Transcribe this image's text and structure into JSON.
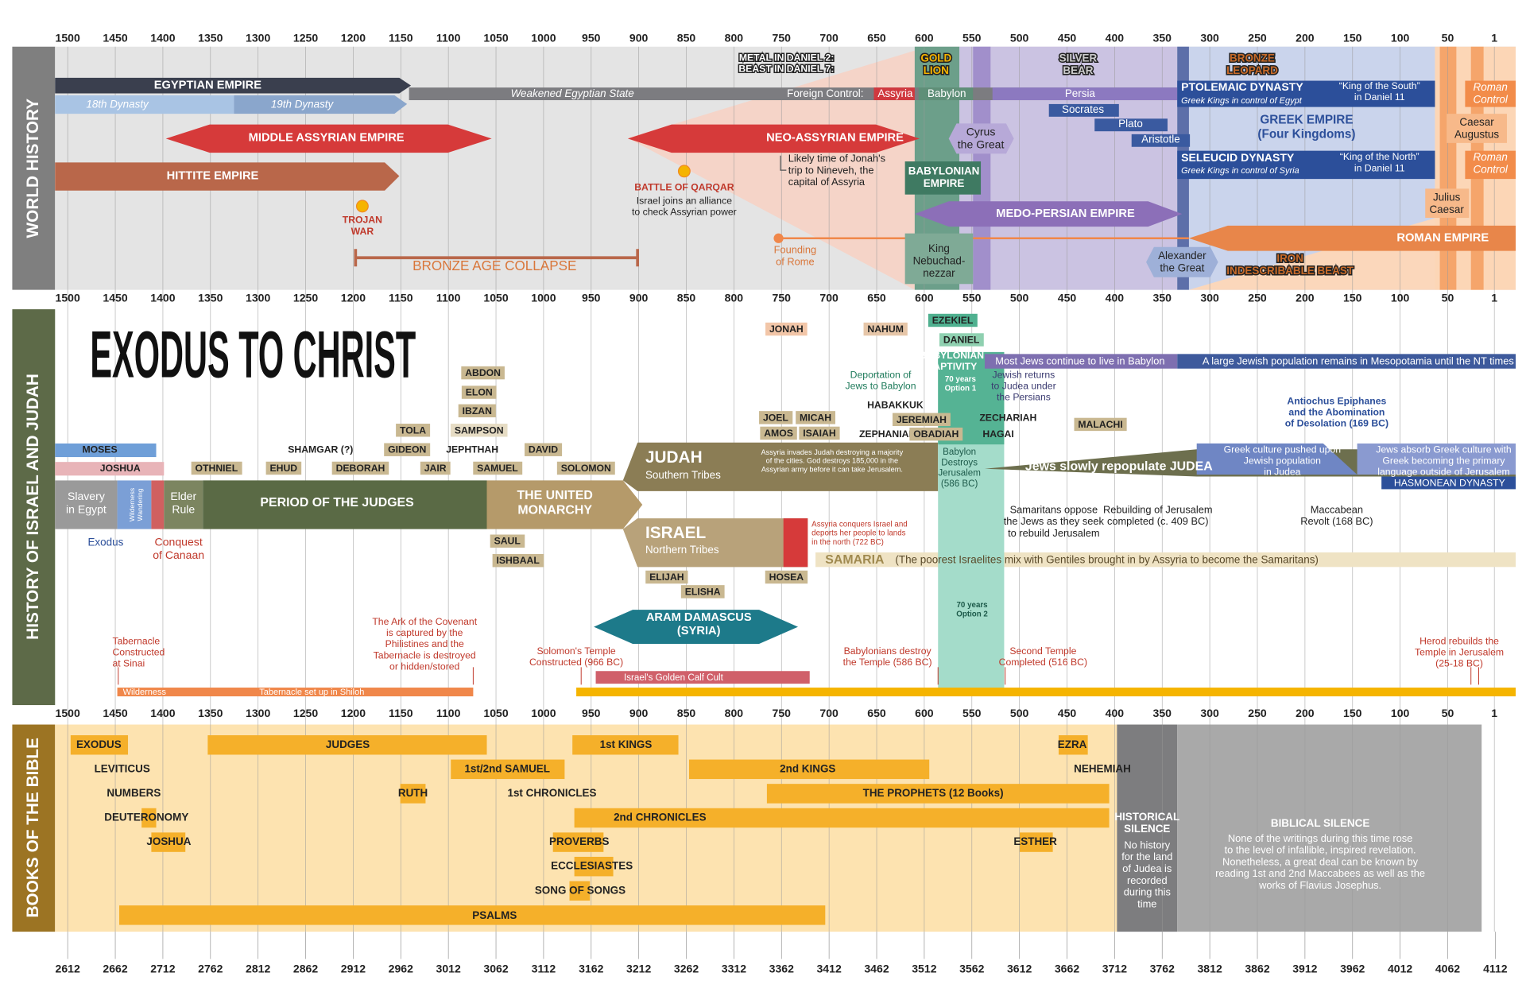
{
  "title": "EXODUS TO CHRIST",
  "sections": [
    "WORLD HISTORY",
    "HISTORY OF ISRAEL AND JUDAH",
    "BOOKS OF THE BIBLE"
  ],
  "bc_axis": [
    1500,
    1450,
    1400,
    1350,
    1300,
    1250,
    1200,
    1150,
    1100,
    1050,
    1000,
    950,
    900,
    850,
    800,
    750,
    700,
    650,
    600,
    550,
    500,
    450,
    400,
    350,
    300,
    250,
    200,
    150,
    100,
    50,
    1
  ],
  "am_axis": [
    2612,
    2662,
    2712,
    2762,
    2812,
    2862,
    2912,
    2962,
    3012,
    3062,
    3112,
    3162,
    3212,
    3262,
    3312,
    3362,
    3412,
    3462,
    3512,
    3562,
    3612,
    3662,
    3712,
    3762,
    3812,
    3862,
    3912,
    3962,
    4012,
    4062,
    4112
  ],
  "world_history": [
    "EGYPTIAN EMPIRE",
    "18th Dynasty",
    "19th Dynasty",
    "Weakened Egyptian State",
    "MIDDLE ASSYRIAN EMPIRE",
    "HITTITE EMPIRE",
    [
      "TROJAN",
      "WAR"
    ],
    "BRONZE AGE COLLAPSE",
    "BATTLE OF QARQAR",
    [
      "Israel joins an alliance",
      "to check Assyrian power"
    ],
    "NEO-ASSYRIAN EMPIRE",
    [
      "Likely time of Jonah's",
      "trip to Nineveh, the",
      "capital of Assyria"
    ],
    [
      "Founding",
      "of Rome"
    ],
    [
      "METAL IN DANIEL 2:",
      "BEAST IN DANIEL 7:"
    ],
    [
      "GOLD",
      "LION"
    ],
    [
      "SILVER",
      "BEAR"
    ],
    [
      "BRONZE",
      "LEOPARD"
    ],
    "Foreign Control:",
    "Assyria",
    "Babylon",
    "Persia",
    "Socrates",
    "Plato",
    "Aristotle",
    [
      "Cyrus",
      "the Great"
    ],
    [
      "BABYLONIAN",
      "EMPIRE"
    ],
    "MEDO-PERSIAN EMPIRE",
    [
      "King",
      "Nebuchad-",
      "nezzar"
    ],
    [
      "Alexander",
      "the Great"
    ],
    [
      "IRON",
      "INDESCRIBABLE BEAST"
    ],
    "PTOLEMAIC DYNASTY",
    "Greek Kings in control of Egypt",
    [
      "“King of the South”",
      "in Daniel 11"
    ],
    [
      "GREEK EMPIRE",
      "(Four Kingdoms)"
    ],
    "SELEUCID DYNASTY",
    "Greek Kings in control of Syria",
    [
      "“King of the North”",
      "in Daniel 11"
    ],
    [
      "Roman",
      "Control"
    ],
    [
      "Caesar",
      "Augustus"
    ],
    [
      "Roman",
      "Control"
    ],
    [
      "Julius",
      "Caesar"
    ],
    "ROMAN EMPIRE"
  ],
  "israel_and_judah": [
    "MOSES",
    "JOSHUA",
    [
      "Slavery",
      "in Egypt"
    ],
    [
      "Wilderness",
      "Wandering"
    ],
    [
      "Elder",
      "Rule"
    ],
    "PERIOD OF THE JUDGES",
    "Exodus",
    [
      "Conquest",
      "of Canaan"
    ],
    "OTHNIEL",
    "EHUD",
    "SHAMGAR (?)",
    "DEBORAH",
    "GIDEON",
    "TOLA",
    "JAIR",
    "ABDON",
    "ELON",
    "IBZAN",
    "SAMPSON",
    "JEPHTHAH",
    "SAMUEL",
    "DAVID",
    "SOLOMON",
    "SAUL",
    "ISHBAAL",
    [
      "THE UNITED",
      "MONARCHY"
    ],
    "JUDAH",
    "Southern Tribes",
    [
      "Assyria invades Judah destroying a majority",
      "of the cities. God destroys 185,000 in the",
      "Assyrian army before it can take Jerusalem."
    ],
    "ISRAEL",
    "Northern Tribes",
    [
      "Assyria conquers Israel and",
      "deports her people to lands",
      "in the north (722 BC)"
    ],
    "ELIJAH",
    "ELISHA",
    "HOSEA",
    "SAMARIA",
    "(The poorest Israelites mix with Gentiles brought in by Assyria to become the Samaritans)",
    [
      "ARAM DAMASCUS",
      "(SYRIA)"
    ],
    "JONAH",
    "NAHUM",
    "JOEL",
    "AMOS",
    "MICAH",
    "ISAIAH",
    "HABAKKUK",
    "ZEPHANIAH",
    "JEREMIAH",
    "OBADIAH",
    "EZEKIEL",
    "DANIEL",
    [
      "BABYLONIAN",
      "CAPTIVITY"
    ],
    [
      "70 years",
      "Option 1"
    ],
    [
      "Deportation of",
      "Jews to Babylon"
    ],
    "Most Jews continue to live in Babylon",
    "A large Jewish population remains in Mesopotamia until the NT times",
    [
      "Jewish returns",
      "to Judea under",
      "the Persians"
    ],
    "ZECHARIAH",
    "HAGAI",
    "MALACHI",
    [
      "Babylon",
      "Destroys",
      "Jerusalem",
      "(586 BC)"
    ],
    "Jews slowly repopulate JUDEA",
    [
      "Antiochus Epiphanes",
      "and the Abomination",
      "of Desolation (169 BC)"
    ],
    [
      "Greek culture pushed upon",
      "Jewish population",
      "in Judea"
    ],
    [
      "Jews absorb Greek culture with",
      "Greek becoming the primary",
      "language outside of Jerusalem"
    ],
    "HASMONEAN DYNASTY",
    [
      "Samaritans oppose",
      "the Jews as they seek",
      "to rebuild Jerusalem"
    ],
    [
      "Rebuilding of Jerusalem",
      "completed (c. 409 BC)"
    ],
    [
      "Maccabean",
      "Revolt (168 BC)"
    ],
    [
      "70 years",
      "Option 2"
    ],
    [
      "Tabernacle",
      "Constructed",
      "at Sinai"
    ],
    [
      "The Ark of the Covenant",
      "is captured by the",
      "Philistines and the",
      "Tabernacle is destroyed",
      "or hidden/stored"
    ],
    [
      "Solomon's Temple",
      "Constructed (966 BC)"
    ],
    "Israel's Golden Calf Cult",
    [
      "Babylonians destroy",
      "the Temple (586 BC)"
    ],
    [
      "Second Temple",
      "Completed (516 BC)"
    ],
    [
      "Herod rebuilds the",
      "Temple in Jerusalem",
      "(25-18 BC)"
    ],
    "Wilderness",
    "Tabernacle set up in Shiloh"
  ],
  "books_of_the_bible": [
    "EXODUS",
    "LEVITICUS",
    "NUMBERS",
    "DEUTERONOMY",
    "JOSHUA",
    "JUDGES",
    "RUTH",
    "1st/2nd SAMUEL",
    "1st CHRONICLES",
    "1st KINGS",
    "2nd KINGS",
    "THE PROPHETS (12 Books)",
    "2nd CHRONICLES",
    "PROVERBS",
    "ECCLESIASTES",
    "SONG OF SONGS",
    "PSALMS",
    "EZRA",
    "NEHEMIAH",
    "ESTHER",
    [
      "HISTORICAL",
      "SILENCE"
    ],
    [
      "No history",
      "for the land",
      "of Judea is",
      "recorded",
      "during this",
      "time"
    ],
    "BIBLICAL SILENCE",
    [
      "None of the writings during this time rose",
      "to the level of infallible, inspired revelation.",
      "Nonetheless, a great deal can be known by",
      "reading 1st and 2nd Maccabees as well as the",
      "works of Flavius Josephus."
    ]
  ]
}
